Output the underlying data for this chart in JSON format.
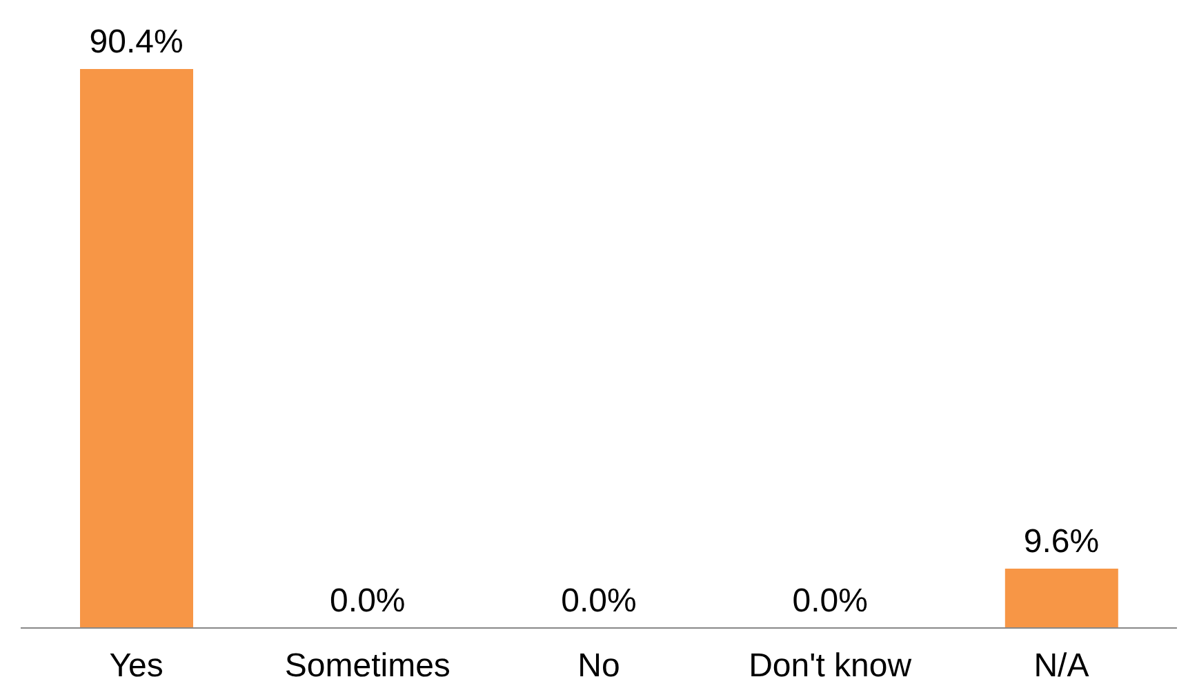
{
  "chart_data": {
    "type": "bar",
    "categories": [
      "Yes",
      "Sometimes",
      "No",
      "Don't know",
      "N/A"
    ],
    "values": [
      90.4,
      0.0,
      0.0,
      0.0,
      9.6
    ],
    "value_labels": [
      "90.4%",
      "0.0%",
      "0.0%",
      "0.0%",
      "9.6%"
    ],
    "color": "#f79646"
  }
}
